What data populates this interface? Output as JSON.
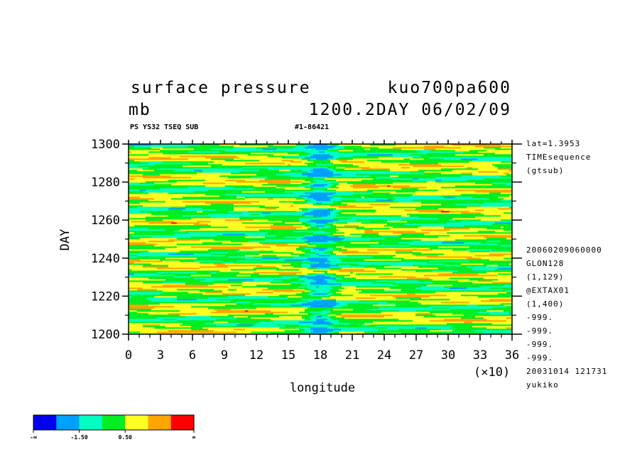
{
  "header": {
    "title_left": "surface pressure",
    "title_right": "kuo700pa600",
    "unit": "mb",
    "date_line": "1200.2DAY 06/02/09",
    "sub_left": "PS YS32 TSEQ SUB",
    "sub_right": "#1-86421"
  },
  "side_top": [
    "lat=1.3953",
    "TIMEsequence",
    "(gtsub)"
  ],
  "side_bottom": [
    "20060209060000",
    "GLON128",
    "(1,129)",
    "@EXTAX01",
    "(1,400)",
    "-999.",
    "-999.",
    "-999.",
    "-999.",
    "20031014 121731",
    "yukiko"
  ],
  "colorbar": {
    "colors": [
      "#0000ee",
      "#00a0ff",
      "#00ffc0",
      "#00ee22",
      "#ffff22",
      "#ffa500",
      "#ff0000"
    ],
    "labels": [
      "-∞",
      "-1.50",
      "0.50",
      "∞"
    ]
  },
  "chart_data": {
    "type": "heatmap",
    "title": "surface pressure",
    "xlabel": "longitude",
    "ylabel": "DAY",
    "x_multiplier_label": "(×10)",
    "xlim": [
      0,
      360
    ],
    "ylim": [
      1200,
      1300
    ],
    "xticks": [
      "0",
      "3",
      "6",
      "9",
      "12",
      "15",
      "18",
      "21",
      "24",
      "27",
      "30",
      "33",
      "36"
    ],
    "yticks": [
      "1200",
      "1220",
      "1240",
      "1260",
      "1280",
      "1300"
    ],
    "levels": [
      -1.5,
      -0.5,
      0.5,
      1.5,
      2.5
    ],
    "trough_longitude": 180,
    "grid": false
  }
}
